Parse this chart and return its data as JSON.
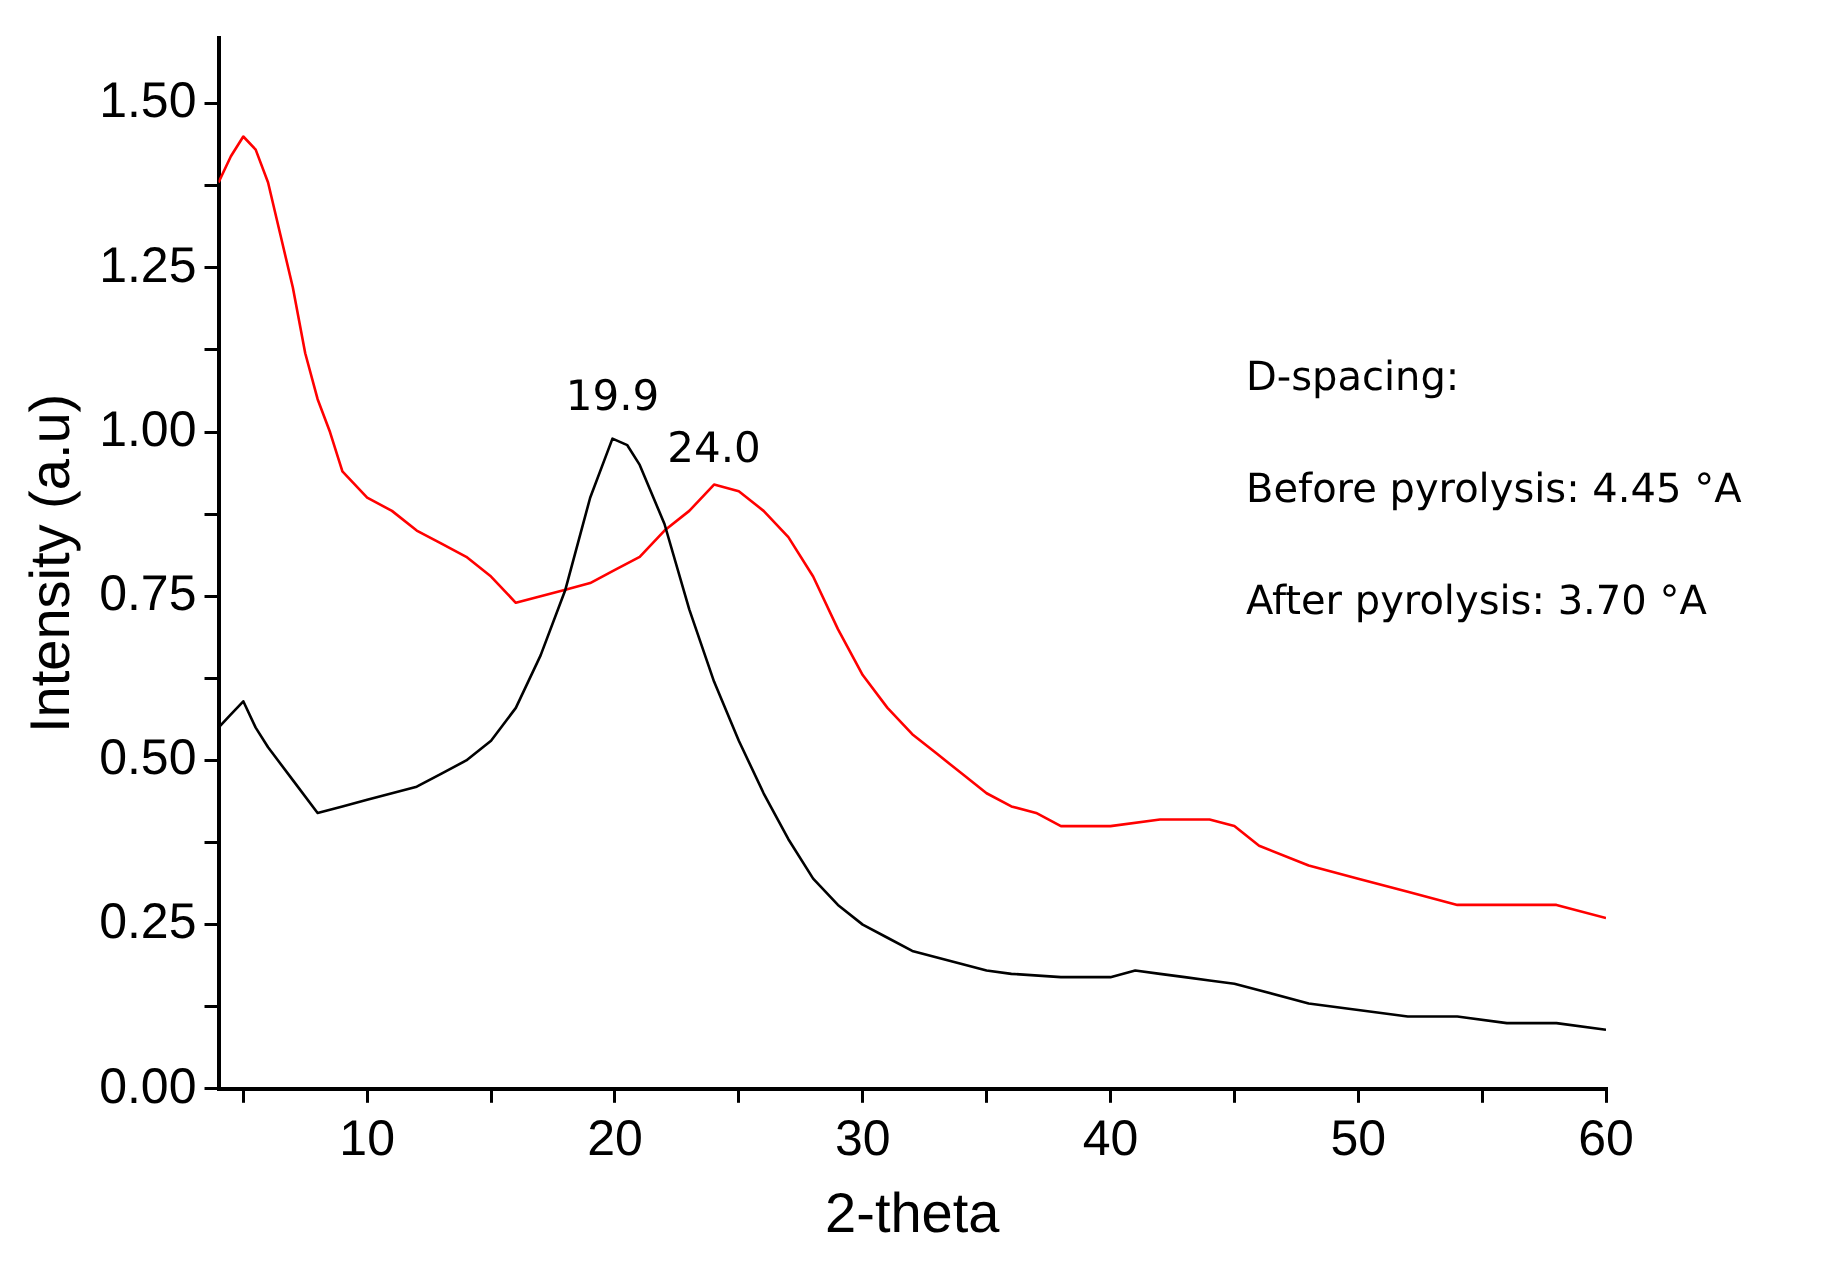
{
  "chart_data": {
    "type": "line",
    "xlabel": "2-theta",
    "ylabel": "Intensity (a.u)",
    "xlim": [
      4,
      60
    ],
    "ylim": [
      0,
      1.6
    ],
    "xticks": [
      {
        "value": 5,
        "label": null
      },
      10,
      {
        "value": 15,
        "label": null
      },
      20,
      {
        "value": 25,
        "label": null
      },
      30,
      {
        "value": 35,
        "label": null
      },
      40,
      {
        "value": 45,
        "label": null
      },
      50,
      {
        "value": 55,
        "label": null
      },
      60
    ],
    "yticks": [
      {
        "value": 0,
        "label": "0.00"
      },
      {
        "value": 0.125,
        "label": null
      },
      {
        "value": 0.25,
        "label": "0.25"
      },
      {
        "value": 0.375,
        "label": null
      },
      {
        "value": 0.5,
        "label": "0.50"
      },
      {
        "value": 0.625,
        "label": null
      },
      {
        "value": 0.75,
        "label": "0.75"
      },
      {
        "value": 0.875,
        "label": null
      },
      {
        "value": 1,
        "label": "1.00"
      },
      {
        "value": 1.125,
        "label": null
      },
      {
        "value": 1.25,
        "label": "1.25"
      },
      {
        "value": 1.375,
        "label": null
      },
      {
        "value": 1.5,
        "label": "1.50"
      }
    ],
    "grid": false,
    "legend": false,
    "marker": "none",
    "line_style": "solid",
    "series": [
      {
        "color": "#000000",
        "x": [
          4,
          4.5,
          5,
          5.5,
          6,
          7,
          8,
          9,
          10,
          11,
          12,
          13,
          14,
          15,
          16,
          17,
          18,
          19,
          19.9,
          20.5,
          21,
          22,
          23,
          24,
          25,
          26,
          27,
          28,
          29,
          30,
          31,
          32,
          33,
          34,
          35,
          36,
          38,
          40,
          41,
          42,
          43,
          44,
          45,
          46,
          48,
          50,
          52,
          54,
          56,
          58,
          60
        ],
        "values": [
          0.55,
          0.57,
          0.59,
          0.55,
          0.52,
          0.47,
          0.42,
          0.43,
          0.44,
          0.45,
          0.46,
          0.48,
          0.5,
          0.53,
          0.58,
          0.66,
          0.76,
          0.9,
          0.99,
          0.98,
          0.95,
          0.86,
          0.73,
          0.62,
          0.53,
          0.45,
          0.38,
          0.32,
          0.28,
          0.25,
          0.23,
          0.21,
          0.2,
          0.19,
          0.18,
          0.175,
          0.17,
          0.17,
          0.18,
          0.175,
          0.17,
          0.165,
          0.16,
          0.15,
          0.13,
          0.12,
          0.11,
          0.11,
          0.1,
          0.1,
          0.09
        ]
      },
      {
        "color": "#ff0000",
        "x": [
          4,
          4.5,
          5,
          5.5,
          6,
          6.5,
          7,
          7.5,
          8,
          8.5,
          9,
          10,
          11,
          12,
          13,
          14,
          15,
          16,
          17,
          18,
          19,
          20,
          21,
          22,
          23,
          24,
          25,
          26,
          27,
          28,
          29,
          30,
          31,
          32,
          33,
          34,
          35,
          36,
          37,
          38,
          40,
          42,
          44,
          45,
          46,
          48,
          50,
          52,
          54,
          56,
          58,
          60
        ],
        "values": [
          1.38,
          1.42,
          1.45,
          1.43,
          1.38,
          1.3,
          1.22,
          1.12,
          1.05,
          1,
          0.94,
          0.9,
          0.88,
          0.85,
          0.83,
          0.81,
          0.78,
          0.74,
          0.75,
          0.76,
          0.77,
          0.79,
          0.81,
          0.85,
          0.88,
          0.92,
          0.91,
          0.88,
          0.84,
          0.78,
          0.7,
          0.63,
          0.58,
          0.54,
          0.51,
          0.48,
          0.45,
          0.43,
          0.42,
          0.4,
          0.4,
          0.41,
          0.41,
          0.4,
          0.37,
          0.34,
          0.32,
          0.3,
          0.28,
          0.28,
          0.28,
          0.26
        ]
      }
    ],
    "annotations": [
      {
        "text": "19.9",
        "x": 19.9,
        "y": 1.0
      },
      {
        "text": "24.0",
        "x": 24,
        "y": 0.92
      },
      "D-spacing:",
      "Before pyrolysis: 4.45 °A",
      "After pyrolysis: 3.70 °A"
    ]
  }
}
